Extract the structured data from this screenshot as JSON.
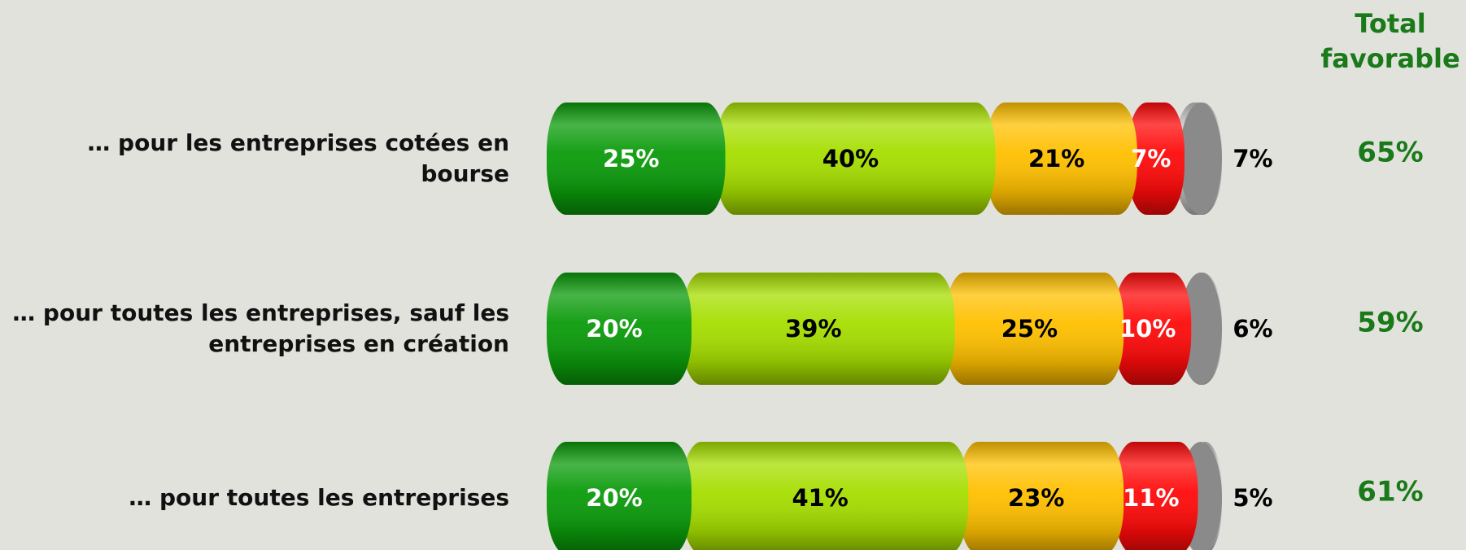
{
  "chart_data": {
    "type": "stacked-bar",
    "categories": [
      "… pour les entreprises cotées en\nbourse",
      "… pour toutes les entreprises, sauf les\nentreprises en création",
      "… pour toutes les entreprises"
    ],
    "xlim": [
      0,
      100
    ],
    "series": [
      {
        "color": "#0b9b0b",
        "label_color": "#ffffff",
        "values": [
          25,
          20,
          20
        ],
        "value_labels": [
          "25%",
          "20%",
          "20%"
        ]
      },
      {
        "color": "#a6de00",
        "label_color": "#000000",
        "values": [
          40,
          39,
          41
        ],
        "value_labels": [
          "40%",
          "39%",
          "41%"
        ]
      },
      {
        "color": "#ffc000",
        "label_color": "#000000",
        "values": [
          21,
          25,
          23
        ],
        "value_labels": [
          "21%",
          "25%",
          "23%"
        ]
      },
      {
        "color": "#ff0a0a",
        "label_color": "#ffffff",
        "values": [
          7,
          10,
          11
        ],
        "value_labels": [
          "7%",
          "10%",
          "11%"
        ]
      },
      {
        "color": "#c4c4c4",
        "label_color": "#000000",
        "values": [
          7,
          6,
          5
        ],
        "value_labels": [
          "7%",
          "6%",
          "5%"
        ]
      }
    ],
    "total": {
      "title": "Total\nfavorable",
      "color": "#1a7a1a",
      "values": [
        65,
        59,
        61
      ],
      "value_labels": [
        "65%",
        "59%",
        "61%"
      ]
    }
  }
}
